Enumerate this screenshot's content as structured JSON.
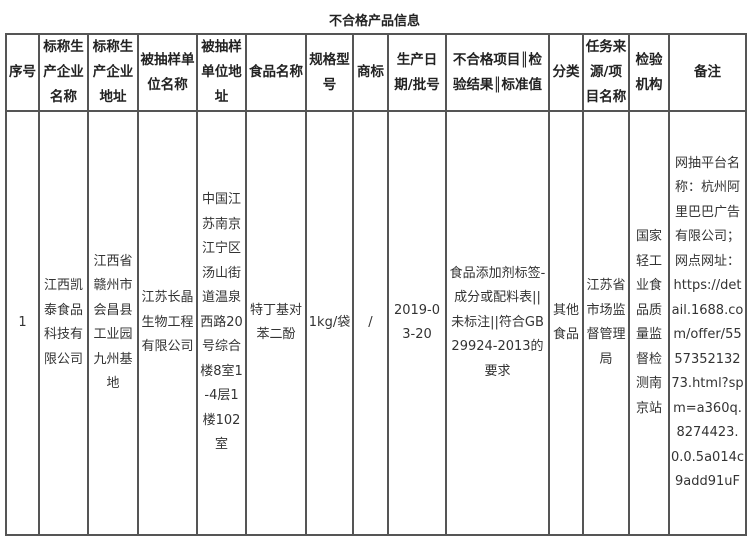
{
  "title": "不合格产品信息",
  "headers": [
    "序号",
    "标称生产企业名称",
    "标称生产企业地址",
    "被抽样单位名称",
    "被抽样单位地址",
    "食品名称",
    "规格型号",
    "商标",
    "生产日期/批号",
    "不合格项目║检验结果║标准值",
    "分类",
    "任务来源/项目名称",
    "检验机构",
    "备注"
  ],
  "rows": [
    [
      "1",
      "江西凯泰食品科技有限公司",
      "江西省赣州市会昌县工业园九州基地",
      "江苏长晶生物工程有限公司",
      "中国江苏南京江宁区汤山街道温泉西路20号综合楼8室1-4层1楼102室",
      "特丁基对苯二酚",
      "1kg/袋",
      "/",
      "2019-03-20",
      "食品添加剂标签-成分或配料表||未标注||符合GB29924-2013的要求",
      "其他食品",
      "江苏省市场监督管理局",
      "国家轻工业食品质量监督检测南京站",
      "网抽平台名称：杭州阿里巴巴广告有限公司；网点网址：https://detail.1688.com/offer/555735213273.html?spm=a360q.8274423.0.0.5a014c9add91uF"
    ]
  ]
}
